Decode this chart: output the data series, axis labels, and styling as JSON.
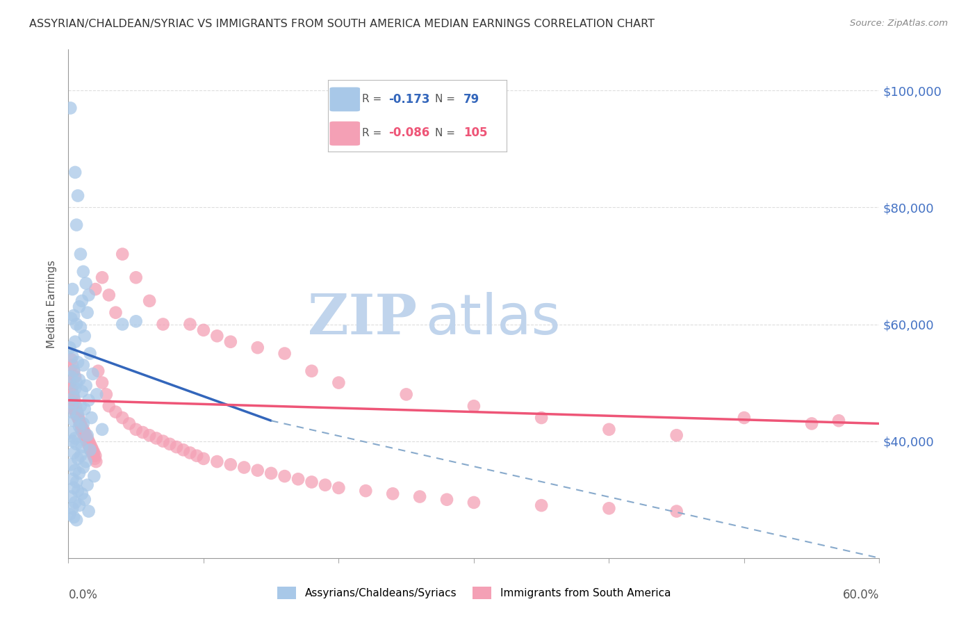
{
  "title": "ASSYRIAN/CHALDEAN/SYRIAC VS IMMIGRANTS FROM SOUTH AMERICA MEDIAN EARNINGS CORRELATION CHART",
  "source": "Source: ZipAtlas.com",
  "ylabel": "Median Earnings",
  "yticks": [
    40000,
    60000,
    80000,
    100000
  ],
  "ytick_labels": [
    "$40,000",
    "$60,000",
    "$80,000",
    "$100,000"
  ],
  "right_axis_color": "#4472c4",
  "legend": {
    "blue_r": "-0.173",
    "blue_n": "79",
    "pink_r": "-0.086",
    "pink_n": "105"
  },
  "blue_color": "#a8c8e8",
  "pink_color": "#f4a0b5",
  "blue_line_color": "#3366bb",
  "pink_line_color": "#ee5577",
  "dashed_line_color": "#88aacc",
  "blue_scatter": [
    [
      0.15,
      97000
    ],
    [
      0.5,
      86000
    ],
    [
      0.7,
      82000
    ],
    [
      0.6,
      77000
    ],
    [
      0.9,
      72000
    ],
    [
      1.1,
      69000
    ],
    [
      1.3,
      67000
    ],
    [
      0.3,
      66000
    ],
    [
      1.5,
      65000
    ],
    [
      1.0,
      64000
    ],
    [
      0.8,
      63000
    ],
    [
      1.4,
      62000
    ],
    [
      0.4,
      61500
    ],
    [
      0.2,
      61000
    ],
    [
      0.6,
      60000
    ],
    [
      0.9,
      59500
    ],
    [
      1.2,
      58000
    ],
    [
      0.5,
      57000
    ],
    [
      0.1,
      56000
    ],
    [
      1.6,
      55000
    ],
    [
      0.3,
      54500
    ],
    [
      0.7,
      53500
    ],
    [
      1.1,
      53000
    ],
    [
      0.4,
      52000
    ],
    [
      1.8,
      51500
    ],
    [
      0.2,
      51000
    ],
    [
      0.8,
      50500
    ],
    [
      0.6,
      50000
    ],
    [
      1.3,
      49500
    ],
    [
      0.5,
      49000
    ],
    [
      1.0,
      48500
    ],
    [
      2.1,
      48000
    ],
    [
      0.4,
      47500
    ],
    [
      1.5,
      47000
    ],
    [
      0.3,
      46500
    ],
    [
      0.9,
      46000
    ],
    [
      1.2,
      45500
    ],
    [
      0.1,
      45000
    ],
    [
      0.7,
      44500
    ],
    [
      1.7,
      44000
    ],
    [
      0.4,
      43500
    ],
    [
      1.1,
      43000
    ],
    [
      0.8,
      42500
    ],
    [
      2.5,
      42000
    ],
    [
      0.2,
      41500
    ],
    [
      1.4,
      41000
    ],
    [
      0.5,
      40500
    ],
    [
      0.3,
      40000
    ],
    [
      0.6,
      39500
    ],
    [
      1.0,
      39000
    ],
    [
      1.6,
      38500
    ],
    [
      0.4,
      38000
    ],
    [
      0.9,
      37500
    ],
    [
      0.7,
      37000
    ],
    [
      1.3,
      36500
    ],
    [
      0.2,
      36000
    ],
    [
      1.1,
      35500
    ],
    [
      0.5,
      35000
    ],
    [
      0.8,
      34500
    ],
    [
      1.9,
      34000
    ],
    [
      0.3,
      33500
    ],
    [
      0.6,
      33000
    ],
    [
      1.4,
      32500
    ],
    [
      0.4,
      32000
    ],
    [
      0.7,
      31500
    ],
    [
      1.0,
      31000
    ],
    [
      0.2,
      30500
    ],
    [
      1.2,
      30000
    ],
    [
      0.5,
      29500
    ],
    [
      0.8,
      29000
    ],
    [
      0.3,
      28500
    ],
    [
      1.5,
      28000
    ],
    [
      0.1,
      27500
    ],
    [
      0.4,
      27000
    ],
    [
      0.6,
      26500
    ],
    [
      4.0,
      60000
    ],
    [
      5.0,
      60500
    ]
  ],
  "pink_scatter": [
    [
      0.1,
      47000
    ],
    [
      0.2,
      46500
    ],
    [
      0.3,
      46000
    ],
    [
      0.4,
      45500
    ],
    [
      0.5,
      45000
    ],
    [
      0.6,
      44500
    ],
    [
      0.7,
      44000
    ],
    [
      0.8,
      43500
    ],
    [
      0.9,
      43000
    ],
    [
      1.0,
      42500
    ],
    [
      1.1,
      42000
    ],
    [
      1.2,
      41500
    ],
    [
      1.3,
      41000
    ],
    [
      1.4,
      40500
    ],
    [
      1.5,
      40000
    ],
    [
      1.6,
      39500
    ],
    [
      1.7,
      39000
    ],
    [
      1.8,
      38500
    ],
    [
      1.9,
      38000
    ],
    [
      2.0,
      37500
    ],
    [
      0.15,
      50000
    ],
    [
      0.25,
      49000
    ],
    [
      0.35,
      48000
    ],
    [
      0.45,
      47000
    ],
    [
      0.55,
      46000
    ],
    [
      0.65,
      45000
    ],
    [
      0.75,
      44000
    ],
    [
      0.85,
      43000
    ],
    [
      0.95,
      42000
    ],
    [
      1.05,
      41500
    ],
    [
      1.15,
      41000
    ],
    [
      1.25,
      40500
    ],
    [
      1.35,
      40000
    ],
    [
      1.45,
      39500
    ],
    [
      1.55,
      39000
    ],
    [
      1.65,
      38500
    ],
    [
      1.75,
      38000
    ],
    [
      1.85,
      37500
    ],
    [
      1.95,
      37000
    ],
    [
      2.05,
      36500
    ],
    [
      2.2,
      52000
    ],
    [
      2.5,
      50000
    ],
    [
      2.8,
      48000
    ],
    [
      3.0,
      46000
    ],
    [
      3.5,
      45000
    ],
    [
      4.0,
      44000
    ],
    [
      4.5,
      43000
    ],
    [
      5.0,
      42000
    ],
    [
      5.5,
      41500
    ],
    [
      6.0,
      41000
    ],
    [
      6.5,
      40500
    ],
    [
      7.0,
      40000
    ],
    [
      7.5,
      39500
    ],
    [
      8.0,
      39000
    ],
    [
      8.5,
      38500
    ],
    [
      9.0,
      38000
    ],
    [
      9.5,
      37500
    ],
    [
      10.0,
      37000
    ],
    [
      11.0,
      36500
    ],
    [
      12.0,
      36000
    ],
    [
      13.0,
      35500
    ],
    [
      14.0,
      35000
    ],
    [
      15.0,
      34500
    ],
    [
      16.0,
      34000
    ],
    [
      17.0,
      33500
    ],
    [
      18.0,
      33000
    ],
    [
      19.0,
      32500
    ],
    [
      20.0,
      32000
    ],
    [
      22.0,
      31500
    ],
    [
      24.0,
      31000
    ],
    [
      26.0,
      30500
    ],
    [
      28.0,
      30000
    ],
    [
      30.0,
      29500
    ],
    [
      35.0,
      29000
    ],
    [
      40.0,
      28500
    ],
    [
      45.0,
      28000
    ],
    [
      0.2,
      54000
    ],
    [
      0.3,
      53000
    ],
    [
      0.4,
      52000
    ],
    [
      0.5,
      51000
    ],
    [
      2.0,
      66000
    ],
    [
      2.5,
      68000
    ],
    [
      3.0,
      65000
    ],
    [
      3.5,
      62000
    ],
    [
      4.0,
      72000
    ],
    [
      5.0,
      68000
    ],
    [
      6.0,
      64000
    ],
    [
      7.0,
      60000
    ],
    [
      9.0,
      60000
    ],
    [
      10.0,
      59000
    ],
    [
      11.0,
      58000
    ],
    [
      12.0,
      57000
    ],
    [
      14.0,
      56000
    ],
    [
      16.0,
      55000
    ],
    [
      18.0,
      52000
    ],
    [
      20.0,
      50000
    ],
    [
      25.0,
      48000
    ],
    [
      30.0,
      46000
    ],
    [
      35.0,
      44000
    ],
    [
      40.0,
      42000
    ],
    [
      45.0,
      41000
    ],
    [
      50.0,
      44000
    ],
    [
      55.0,
      43000
    ],
    [
      57.0,
      43500
    ]
  ],
  "xmin": 0.0,
  "xmax": 60.0,
  "ymin": 20000,
  "ymax": 107000,
  "blue_line_x0": 0.0,
  "blue_line_y0": 56000,
  "blue_line_x1": 15.0,
  "blue_line_y1": 43500,
  "blue_dash_x0": 15.0,
  "blue_dash_y0": 43500,
  "blue_dash_x1": 60.0,
  "blue_dash_y1": 20000,
  "pink_line_x0": 0.0,
  "pink_line_y0": 47000,
  "pink_line_x1": 60.0,
  "pink_line_y1": 43000,
  "watermark_zip": "ZIP",
  "watermark_atlas": "atlas",
  "watermark_color": "#c0d4ec"
}
